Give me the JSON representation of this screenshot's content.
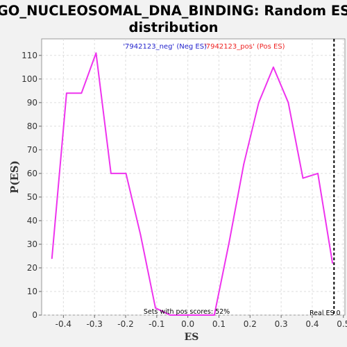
{
  "chart_data": {
    "type": "line",
    "title_lines": [
      "GO_NUCLEOSOMAL_DNA_BINDING: Random ES",
      "distribution"
    ],
    "xlabel": "ES",
    "ylabel": "P(ES)",
    "xlim": [
      -0.47,
      0.505
    ],
    "ylim": [
      0,
      117
    ],
    "x_ticks": [
      -0.4,
      -0.3,
      -0.2,
      -0.1,
      0.0,
      0.1,
      0.2,
      0.3,
      0.4,
      0.5
    ],
    "x_tick_labels": [
      "-0.4",
      "-0.3",
      "-0.2",
      "-0.1",
      "0.0",
      "0.1",
      "0.2",
      "0.3",
      "0.4",
      "0.5"
    ],
    "y_ticks": [
      0,
      10,
      20,
      30,
      40,
      50,
      60,
      70,
      80,
      90,
      100,
      110
    ],
    "y_tick_labels": [
      "0",
      "10",
      "20",
      "30",
      "40",
      "50",
      "60",
      "70",
      "80",
      "90",
      "100",
      "110"
    ],
    "grid": true,
    "legend_position": "top-center",
    "legend": [
      {
        "label": "'7942123_neg' (Neg ES)",
        "color": "#2222cc"
      },
      {
        "label": "'7942123_pos' (Pos ES)",
        "color": "#ee2222"
      }
    ],
    "series": [
      {
        "color": "#ee33ee",
        "x": [
          -0.437,
          -0.39,
          -0.342,
          -0.295,
          -0.247,
          -0.199,
          -0.152,
          -0.104,
          -0.057,
          0.0,
          0.085,
          0.133,
          0.18,
          0.228,
          0.275,
          0.323,
          0.37,
          0.418,
          0.465
        ],
        "y": [
          24,
          94,
          94,
          111,
          60,
          60,
          34,
          3,
          0,
          0,
          0,
          31,
          64,
          90,
          105,
          90,
          58,
          60,
          22
        ]
      }
    ],
    "real_es": {
      "value": 0.47,
      "label": "Real ES 0"
    },
    "annotation": "Sets with pos scores: 52%"
  }
}
